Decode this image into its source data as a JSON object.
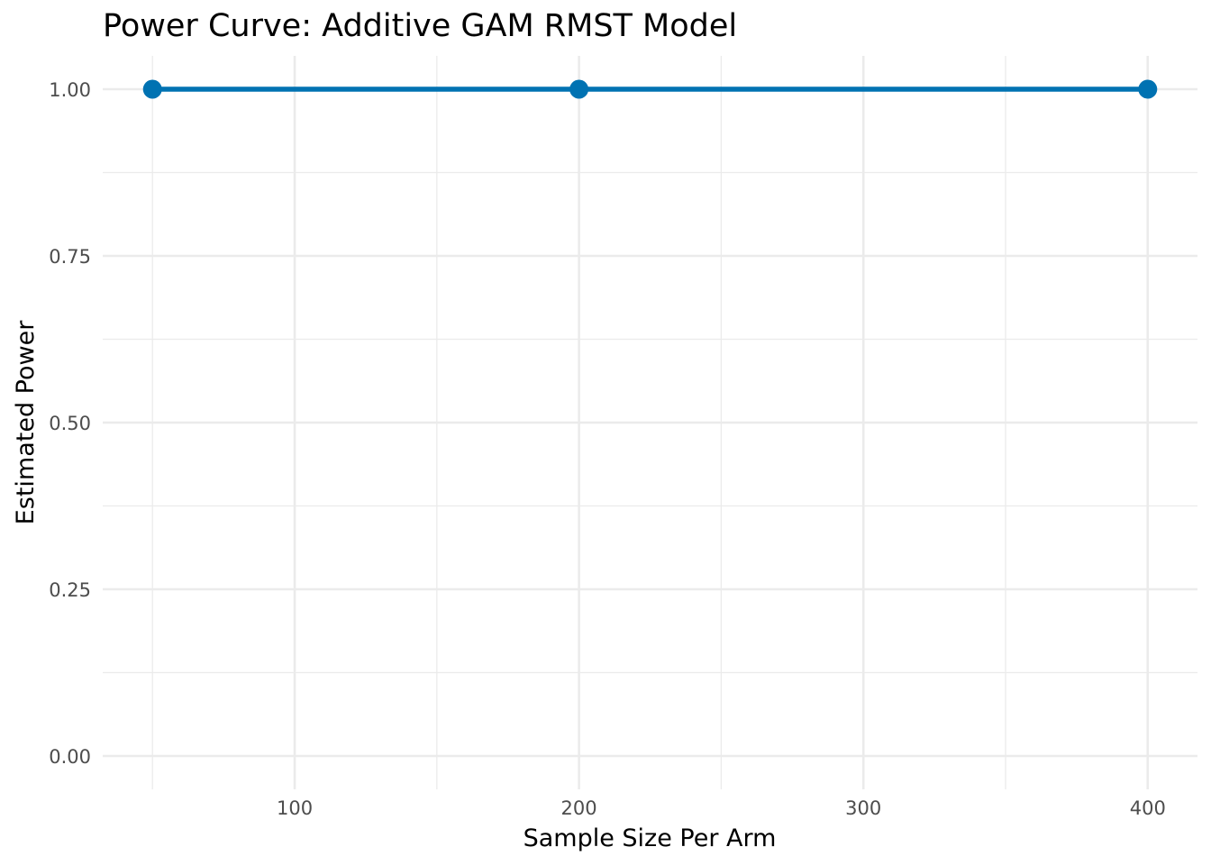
{
  "chart_data": {
    "type": "line",
    "title": "Power Curve: Additive GAM RMST Model",
    "xlabel": "Sample Size Per Arm",
    "ylabel": "Estimated Power",
    "x": [
      50,
      200,
      400
    ],
    "series": [
      {
        "values": [
          1.0,
          1.0,
          1.0
        ]
      }
    ],
    "xlim": [
      32.5,
      417.5
    ],
    "ylim": [
      -0.05,
      1.05
    ],
    "x_ticks": [
      100,
      200,
      300,
      400
    ],
    "x_tick_labels": [
      "100",
      "200",
      "300",
      "400"
    ],
    "x_minor_ticks": [
      50,
      150,
      250,
      350
    ],
    "y_ticks": [
      0,
      0.25,
      0.5,
      0.75,
      1.0
    ],
    "y_tick_labels": [
      "0.00",
      "0.25",
      "0.50",
      "0.75",
      "1.00"
    ],
    "y_minor_ticks": [
      0.125,
      0.375,
      0.625,
      0.875
    ],
    "grid": true,
    "legend": "none",
    "colors": {
      "series": "#0072B2",
      "grid": "#ebebeb",
      "tick_text": "#4d4d4d"
    }
  }
}
